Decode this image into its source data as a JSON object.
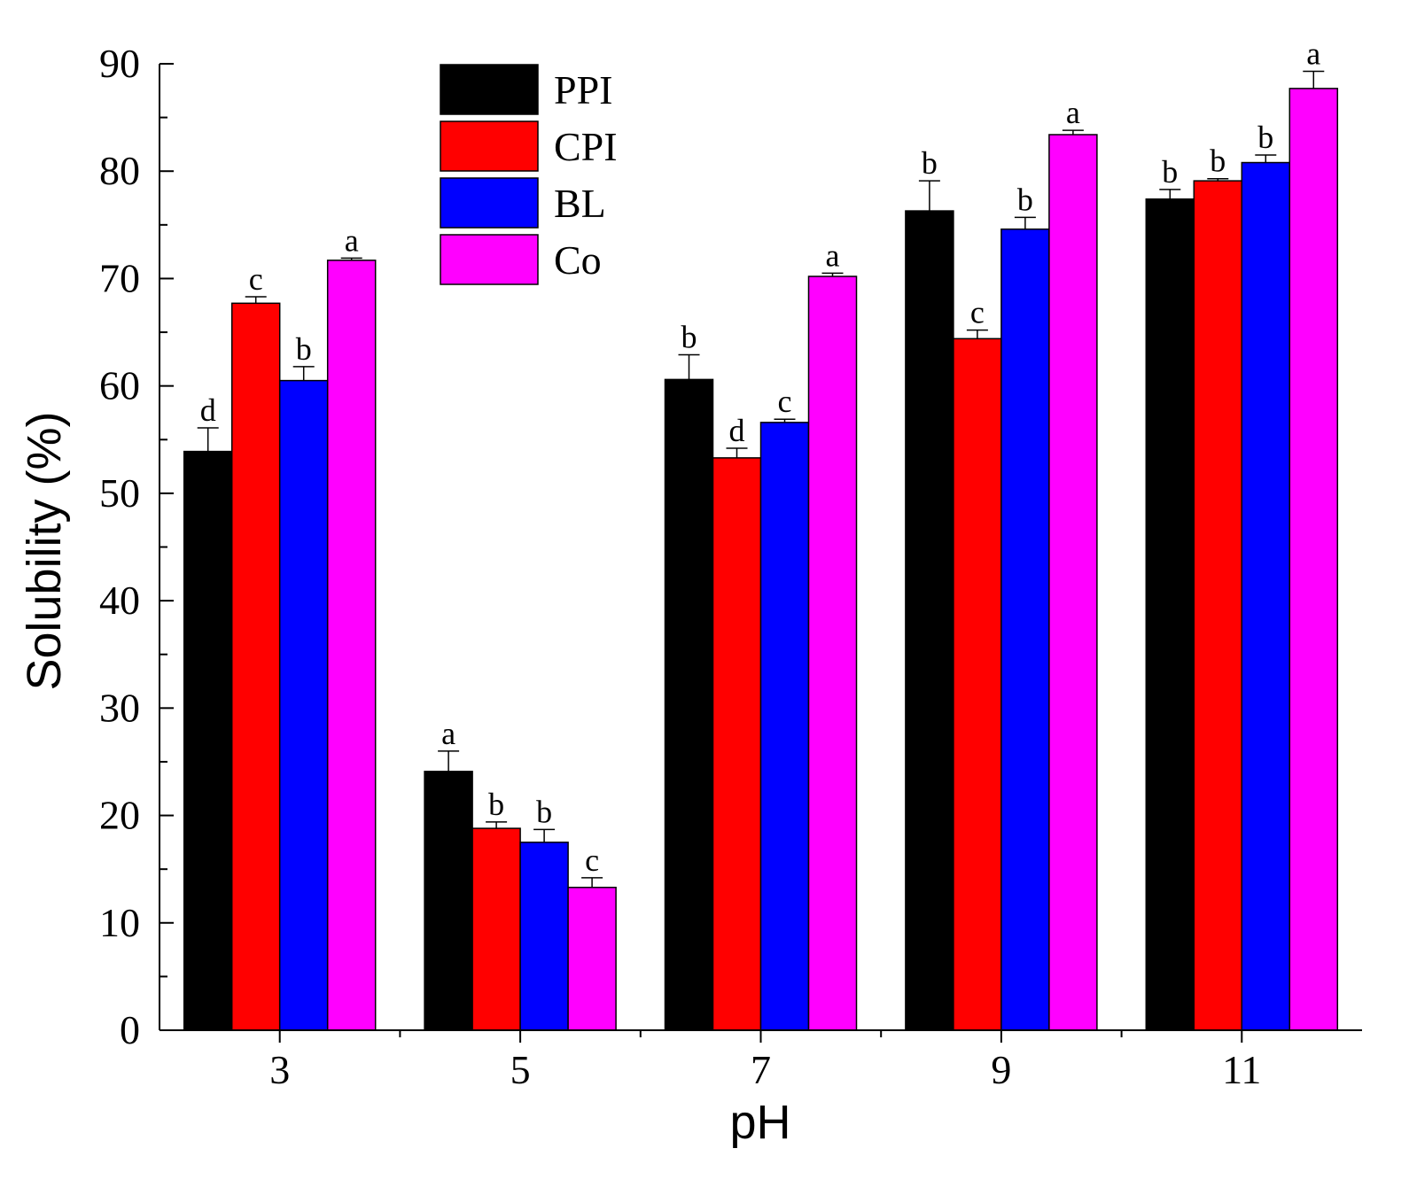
{
  "chart_data": {
    "type": "bar",
    "title": "",
    "xlabel": "pH",
    "ylabel": "Solubility (%)",
    "ylim": [
      0,
      90
    ],
    "yticks": [
      0,
      10,
      20,
      30,
      40,
      50,
      60,
      70,
      80,
      90
    ],
    "categories": [
      "3",
      "5",
      "7",
      "9",
      "11"
    ],
    "legend_position": "top-center",
    "series": [
      {
        "name": "PPI",
        "color": "#000000",
        "values": [
          53.9,
          24.1,
          60.6,
          76.3,
          77.4
        ],
        "errors": [
          2.2,
          1.9,
          2.3,
          2.8,
          0.9
        ],
        "labels": [
          "d",
          "a",
          "b",
          "b",
          "b"
        ]
      },
      {
        "name": "CPI",
        "color": "#ff0000",
        "values": [
          67.7,
          18.8,
          53.3,
          64.4,
          79.1
        ],
        "errors": [
          0.6,
          0.6,
          0.9,
          0.8,
          0.2
        ],
        "labels": [
          "c",
          "b",
          "d",
          "c",
          "b"
        ]
      },
      {
        "name": "BL",
        "color": "#0000ff",
        "values": [
          60.5,
          17.5,
          56.6,
          74.6,
          80.8
        ],
        "errors": [
          1.3,
          1.2,
          0.3,
          1.1,
          0.7
        ],
        "labels": [
          "b",
          "b",
          "c",
          "b",
          "b"
        ]
      },
      {
        "name": "Co",
        "color": "#ff00ff",
        "values": [
          71.7,
          13.3,
          70.2,
          83.4,
          87.7
        ],
        "errors": [
          0.2,
          0.9,
          0.3,
          0.4,
          1.6
        ],
        "labels": [
          "a",
          "c",
          "a",
          "a",
          "a"
        ]
      }
    ]
  }
}
